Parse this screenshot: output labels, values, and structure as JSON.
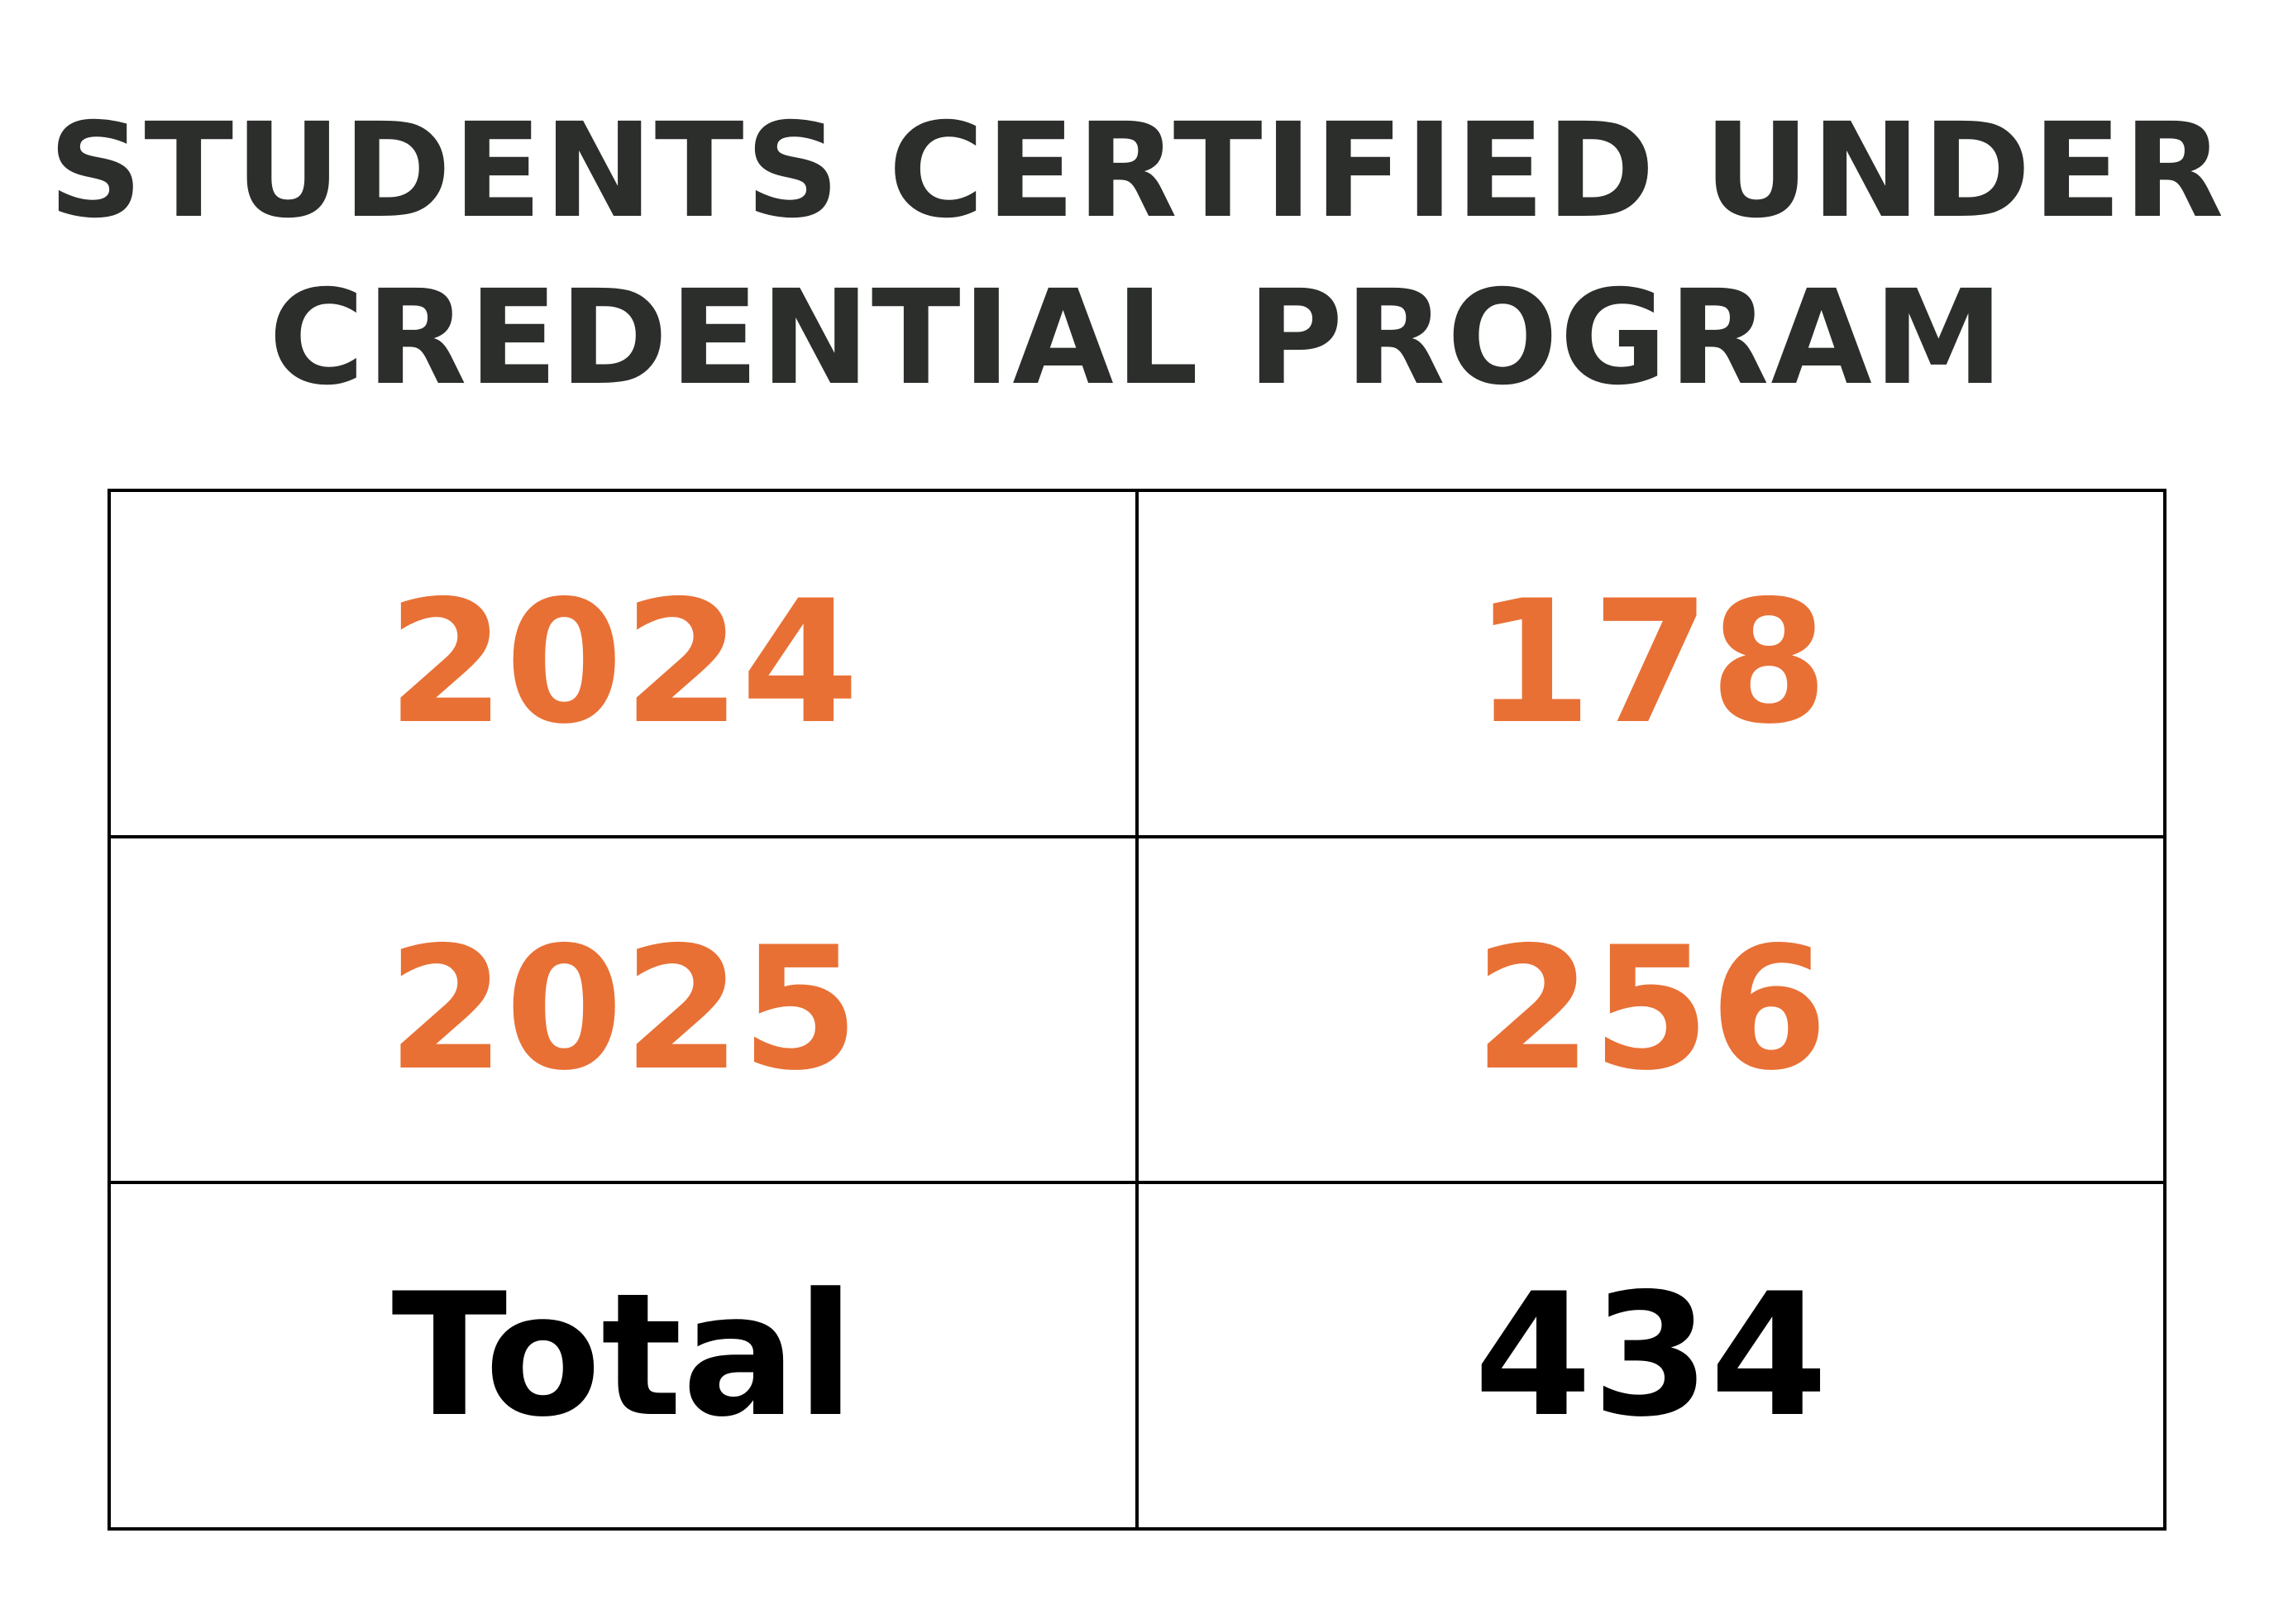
{
  "header": {
    "title_lines": [
      "STUDENTS CERTIFIED UNDER",
      "CREDENTIAL PROGRAM"
    ]
  },
  "table": {
    "rows": [
      [
        "2024",
        178
      ],
      [
        "2025",
        256
      ],
      [
        "Total",
        434
      ]
    ]
  }
}
